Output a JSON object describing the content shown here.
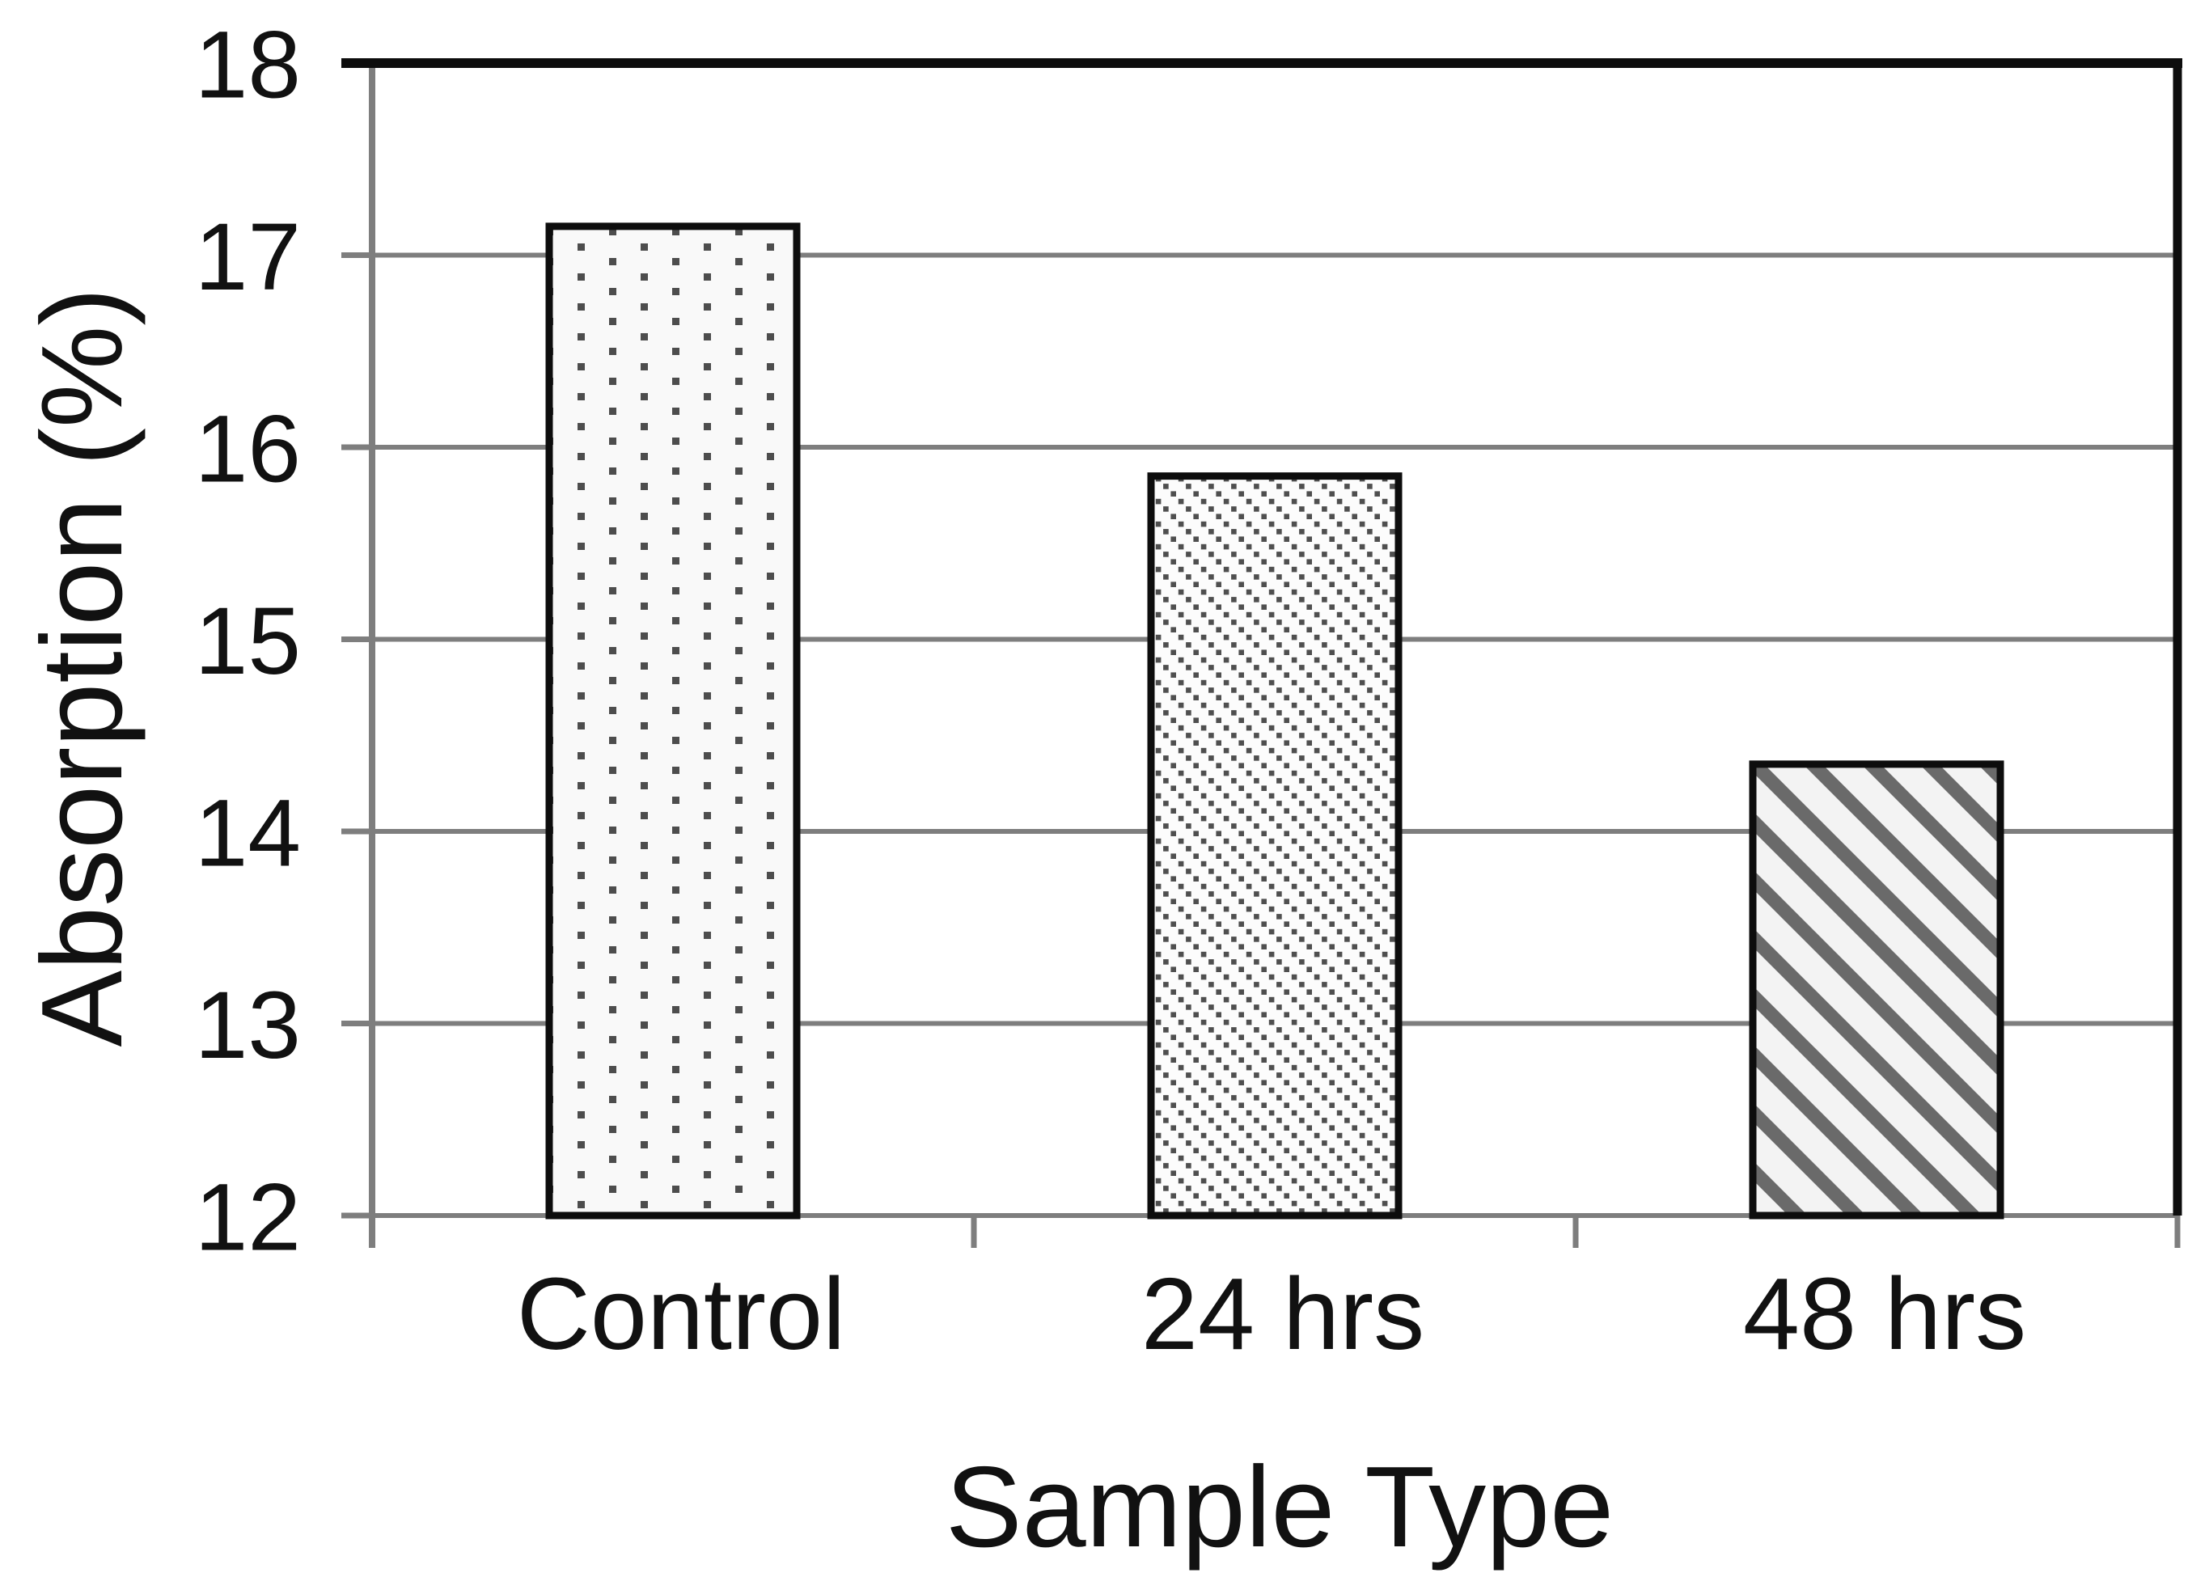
{
  "chart_data": {
    "type": "bar",
    "title": "",
    "categories": [
      "Control",
      "24 hrs",
      "48 hrs"
    ],
    "values": [
      17.15,
      15.85,
      14.35
    ],
    "xlabel": "Sample Type",
    "ylabel": "Absorption (%)",
    "ylim": [
      12,
      18
    ],
    "yticks": [
      12,
      13,
      14,
      15,
      16,
      17,
      18
    ],
    "grid": "horizontal gray gridlines at every integer tick",
    "legend": "none",
    "bar_patterns": [
      "sparse-square-dots",
      "thin-dotted-diagonal-lines",
      "thick-gray-diagonal-stripes"
    ],
    "colors": {
      "background": "#ffffff",
      "grid_gray": "#7e7e7e",
      "border_black": "#0d0d0d",
      "pattern_dot_gray": "#4d4d4d",
      "pattern_stripe_gray": "#6a6a6a",
      "bar_face": "#f8f8f8",
      "text": "#111111"
    }
  }
}
